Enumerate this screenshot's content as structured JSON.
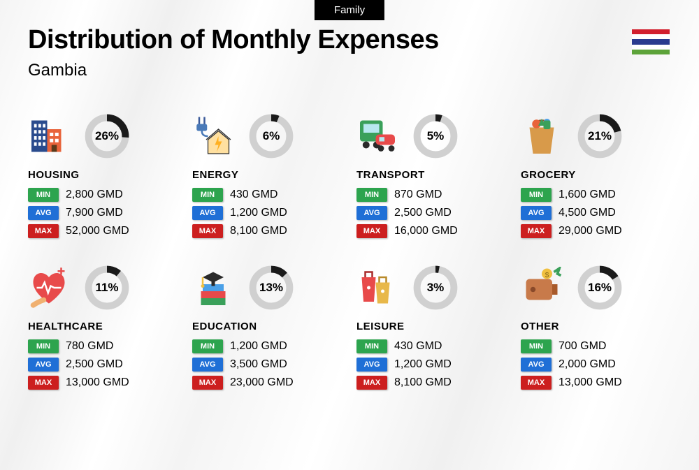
{
  "tag": "Family",
  "title": "Distribution of Monthly Expenses",
  "subtitle": "Gambia",
  "flag_colors": [
    "#d21f2d",
    "#2a3b8f",
    "#5da33a"
  ],
  "donut_track_color": "#d0d0d0",
  "donut_fill_color": "#1a1a1a",
  "badges": {
    "min": {
      "label": "MIN",
      "color": "#2da44e"
    },
    "avg": {
      "label": "AVG",
      "color": "#1f6fd6"
    },
    "max": {
      "label": "MAX",
      "color": "#cc1f1f"
    }
  },
  "categories": [
    {
      "key": "housing",
      "name": "HOUSING",
      "pct": 26,
      "min": "2,800 GMD",
      "avg": "7,900 GMD",
      "max": "52,000 GMD"
    },
    {
      "key": "energy",
      "name": "ENERGY",
      "pct": 6,
      "min": "430 GMD",
      "avg": "1,200 GMD",
      "max": "8,100 GMD"
    },
    {
      "key": "transport",
      "name": "TRANSPORT",
      "pct": 5,
      "min": "870 GMD",
      "avg": "2,500 GMD",
      "max": "16,000 GMD"
    },
    {
      "key": "grocery",
      "name": "GROCERY",
      "pct": 21,
      "min": "1,600 GMD",
      "avg": "4,500 GMD",
      "max": "29,000 GMD"
    },
    {
      "key": "healthcare",
      "name": "HEALTHCARE",
      "pct": 11,
      "min": "780 GMD",
      "avg": "2,500 GMD",
      "max": "13,000 GMD"
    },
    {
      "key": "education",
      "name": "EDUCATION",
      "pct": 13,
      "min": "1,200 GMD",
      "avg": "3,500 GMD",
      "max": "23,000 GMD"
    },
    {
      "key": "leisure",
      "name": "LEISURE",
      "pct": 3,
      "min": "430 GMD",
      "avg": "1,200 GMD",
      "max": "8,100 GMD"
    },
    {
      "key": "other",
      "name": "OTHER",
      "pct": 16,
      "min": "700 GMD",
      "avg": "2,000 GMD",
      "max": "13,000 GMD"
    }
  ],
  "icons": {
    "housing": "<svg viewBox='0 0 48 48'><rect x='4' y='6' width='18' height='36' fill='#2a4b8d'/><rect x='7' y='10' width='3' height='4' fill='#fff'/><rect x='12' y='10' width='3' height='4' fill='#fff'/><rect x='17' y='10' width='3' height='4' fill='#fff'/><rect x='7' y='17' width='3' height='4' fill='#fff'/><rect x='12' y='17' width='3' height='4' fill='#fff'/><rect x='17' y='17' width='3' height='4' fill='#fff'/><rect x='7' y='24' width='3' height='4' fill='#fff'/><rect x='12' y='24' width='3' height='4' fill='#fff'/><rect x='17' y='24' width='3' height='4' fill='#fff'/><rect x='7' y='31' width='3' height='4' fill='#fff'/><rect x='12' y='31' width='3' height='4' fill='#fff'/><rect x='17' y='31' width='3' height='4' fill='#fff'/><rect x='22' y='16' width='16' height='26' fill='#e8633a'/><rect x='25' y='20' width='4' height='4' fill='#fff'/><rect x='31' y='20' width='4' height='4' fill='#fff'/><rect x='25' y='27' width='4' height='4' fill='#fff'/><rect x='31' y='27' width='4' height='4' fill='#fff'/><rect x='27' y='34' width='6' height='8' fill='#5a3a1a'/></svg>",
    "energy": "<svg viewBox='0 0 48 48'><path d='M8 2 L8 10 M14 2 L14 10' stroke='#3a5a9a' stroke-width='2'/><rect x='5' y='10' width='12' height='8' rx='2' fill='#4a7ab8'/><path d='M11 18 Q11 24 18 24' stroke='#4a7ab8' stroke-width='2' fill='none'/><path d='M16 28 L30 16 L44 28' fill='none' stroke='#2a2a2a' stroke-width='1'/><path d='M18 28 L18 44 L42 44 L42 28 L30 18 Z' fill='#ffe0a0' stroke='#2a2a2a' stroke-width='1'/><path d='M30 24 L26 34 L30 34 L28 42 L34 30 L30 30 Z' fill='#ffb020'/></svg>",
    "transport": "<svg viewBox='0 0 48 48'><rect x='4' y='6' width='26' height='24' rx='3' fill='#3aa05a'/><rect x='8' y='10' width='18' height='10' fill='#b8e8f0'/><circle cx='11' cy='34' r='4' fill='#2a2a2a'/><circle cx='23' cy='34' r='4' fill='#2a2a2a'/><rect x='22' y='22' width='22' height='12' rx='4' fill='#e84a4a'/><rect x='26' y='25' width='6' height='5' fill='#b8e8f0'/><circle cx='28' cy='38' r='3.5' fill='#2a2a2a'/><circle cx='40' cy='38' r='3.5' fill='#2a2a2a'/></svg>",
    "grocery": "<svg viewBox='0 0 48 48'><path d='M10 14 L38 14 L34 44 L14 44 Z' fill='#d89a4a'/><path d='M16 14 Q16 6 24 6 Q32 6 32 14' fill='none' stroke='#8a5a2a' stroke-width='2'/><circle cx='18' cy='10' r='5' fill='#e8633a'/><path d='M24 4 L28 12 L20 12 Z' fill='#3aa05a'/><circle cx='30' cy='8' r='4' fill='#4aa0e8'/><rect x='26' y='6' width='8' height='10' rx='2' fill='#3aa05a'/></svg>",
    "healthcare": "<svg viewBox='0 0 48 48'><path d='M24 12 C18 4 6 6 6 18 C6 30 24 42 24 42 C24 42 42 30 42 18 C42 6 30 4 24 12 Z' fill='#e84a4a'/><path d='M10 24 L16 24 L19 18 L23 30 L26 22 L30 24 L38 24' stroke='#fff' stroke-width='2' fill='none'/><path d='M6 44 Q12 40 18 38' stroke='#f0b070' stroke-width='6' stroke-linecap='round' fill='none'/><rect x='34' y='4' width='8' height='2' fill='#e84a4a'/><rect x='37' y='1' width='2' height='8' fill='#e84a4a'/></svg>",
    "education": "<svg viewBox='0 0 48 48'><rect x='10' y='28' width='28' height='8' fill='#e84a4a'/><rect x='10' y='36' width='28' height='8' fill='#3aa05a'/><rect x='12' y='20' width='24' height='8' fill='#4aa0e8'/><path d='M12 12 L24 6 L36 12 L24 18 Z' fill='#2a2a2a'/><rect x='22' y='14' width='4' height='8' fill='#2a2a2a'/><path d='M12 12 L12 20' stroke='#f0c040' stroke-width='2'/><circle cx='12' cy='22' r='2' fill='#f0c040'/></svg>",
    "leisure": "<svg viewBox='0 0 48 48'><path d='M6 12 L22 12 L20 40 L8 40 Z' fill='#e84a4a'/><path d='M10 12 L10 6 L18 6 L18 12' fill='none' stroke='#a82a2a' stroke-width='2'/><path d='M22 18 L38 18 L36 42 L24 42 Z' fill='#e8b84a'/><path d='M26 18 L26 12 L34 12 L34 18' fill='none' stroke='#b88a2a' stroke-width='2'/><circle cx='14' cy='24' r='2' fill='#fff'/><circle cx='30' cy='28' r='2' fill='#fff'/></svg>",
    "other": "<svg viewBox='0 0 48 48'><rect x='6' y='14' width='30' height='24' rx='4' fill='#c87a4a'/><path d='M36 20 L42 20 L42 32 L36 32 Z' fill='#a85a2a'/><circle cx='14' cy='26' r='3' fill='#8a4a2a'/><circle cx='30' cy='8' r='6' fill='#f0c040'/><text x='30' y='12' font-size='8' text-anchor='middle' fill='#8a6a1a'>$</text><path d='M38 6 L44 2 L42 8 L46 10' fill='none' stroke='#3aa05a' stroke-width='3'/><path d='M44 2 L46 4 L42 2 Z' fill='#3aa05a'/></svg>"
  }
}
